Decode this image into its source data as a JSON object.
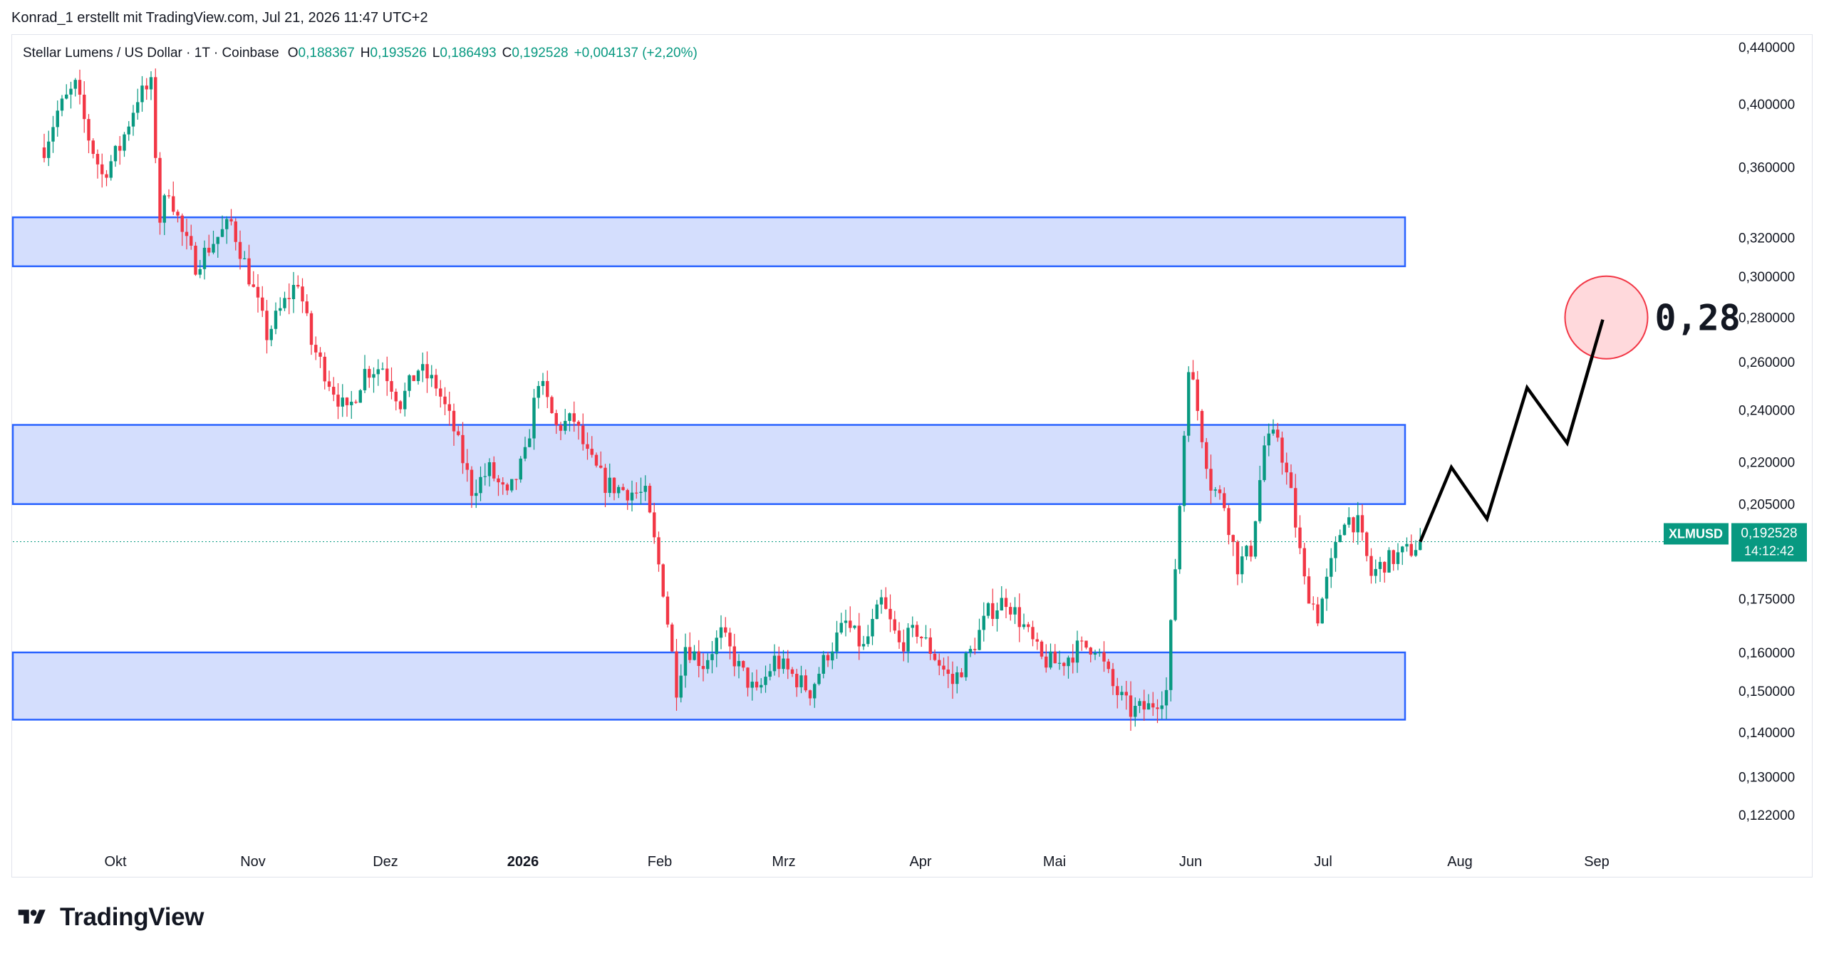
{
  "header": {
    "credit": "Konrad_1 erstellt mit TradingView.com, Jul 21, 2026 11:47 UTC+2"
  },
  "legend": {
    "symbol": "Stellar Lumens / US Dollar · 1T · Coinbase",
    "open_label": "O",
    "open": "0,188367",
    "high_label": "H",
    "high": "0,193526",
    "low_label": "L",
    "low": "0,186493",
    "close_label": "C",
    "close": "0,192528",
    "change": "+0,004137 (+2,20%)"
  },
  "price_tag": {
    "symbol": "XLMUSD",
    "price": "0,192528",
    "countdown": "14:12:42"
  },
  "annotation": {
    "target_text": "0,28"
  },
  "brand": {
    "name": "TradingView"
  },
  "colors": {
    "up": "#089981",
    "down": "#f23645",
    "zone_fill": "#d4defd",
    "zone_stroke": "#2962ff",
    "target_circle_fill": "#ffd9dc",
    "target_circle_stroke": "#f23645",
    "projection": "#000000",
    "grid_text": "#131722"
  },
  "chart_data": {
    "type": "candlestick",
    "symbol": "XLMUSD",
    "timeframe": "1T",
    "exchange": "Coinbase",
    "y_scale": "log",
    "y_ticks": [
      "0,440000",
      "0,400000",
      "0,360000",
      "0,320000",
      "0,300000",
      "0,280000",
      "0,260000",
      "0,240000",
      "0,220000",
      "0,205000",
      "0,175000",
      "0,160000",
      "0,150000",
      "0,140000",
      "0,130000",
      "0,122000"
    ],
    "y_tick_values": [
      0.44,
      0.4,
      0.36,
      0.32,
      0.3,
      0.28,
      0.26,
      0.24,
      0.22,
      0.205,
      0.175,
      0.16,
      0.15,
      0.14,
      0.13,
      0.122
    ],
    "x_ticks": [
      "Okt",
      "Nov",
      "Dez",
      "2026",
      "Feb",
      "Mrz",
      "Apr",
      "Mai",
      "Jun",
      "Jul",
      "Aug",
      "Sep"
    ],
    "x_tick_bold": [
      false,
      false,
      false,
      true,
      false,
      false,
      false,
      false,
      false,
      false,
      false,
      false
    ],
    "zones": [
      {
        "low": 0.305,
        "high": 0.331
      },
      {
        "low": 0.205,
        "high": 0.234
      },
      {
        "low": 0.143,
        "high": 0.16
      }
    ],
    "last_price": 0.192528,
    "price_path": [
      [
        "2025-09-15",
        0.372
      ],
      [
        "2025-09-18",
        0.395
      ],
      [
        "2025-09-22",
        0.412
      ],
      [
        "2025-09-25",
        0.378
      ],
      [
        "2025-09-28",
        0.355
      ],
      [
        "2025-10-02",
        0.372
      ],
      [
        "2025-10-06",
        0.405
      ],
      [
        "2025-10-09",
        0.412
      ],
      [
        "2025-10-11",
        0.33
      ],
      [
        "2025-10-13",
        0.348
      ],
      [
        "2025-10-16",
        0.322
      ],
      [
        "2025-10-19",
        0.306
      ],
      [
        "2025-10-23",
        0.318
      ],
      [
        "2025-10-27",
        0.328
      ],
      [
        "2025-10-31",
        0.3
      ],
      [
        "2025-11-04",
        0.272
      ],
      [
        "2025-11-08",
        0.287
      ],
      [
        "2025-11-11",
        0.298
      ],
      [
        "2025-11-14",
        0.268
      ],
      [
        "2025-11-18",
        0.252
      ],
      [
        "2025-11-22",
        0.238
      ],
      [
        "2025-11-26",
        0.256
      ],
      [
        "2025-11-30",
        0.258
      ],
      [
        "2025-12-04",
        0.243
      ],
      [
        "2025-12-08",
        0.257
      ],
      [
        "2025-12-12",
        0.25
      ],
      [
        "2025-12-16",
        0.232
      ],
      [
        "2025-12-20",
        0.21
      ],
      [
        "2025-12-24",
        0.217
      ],
      [
        "2025-12-28",
        0.207
      ],
      [
        "2026-01-01",
        0.222
      ],
      [
        "2026-01-04",
        0.253
      ],
      [
        "2026-01-08",
        0.233
      ],
      [
        "2026-01-12",
        0.236
      ],
      [
        "2026-01-15",
        0.222
      ],
      [
        "2026-01-19",
        0.212
      ],
      [
        "2026-01-23",
        0.21
      ],
      [
        "2026-01-28",
        0.208
      ],
      [
        "2026-02-01",
        0.178
      ],
      [
        "2026-02-04",
        0.151
      ],
      [
        "2026-02-06",
        0.162
      ],
      [
        "2026-02-10",
        0.157
      ],
      [
        "2026-02-14",
        0.165
      ],
      [
        "2026-02-18",
        0.156
      ],
      [
        "2026-02-22",
        0.149
      ],
      [
        "2026-02-26",
        0.158
      ],
      [
        "2026-03-02",
        0.154
      ],
      [
        "2026-03-06",
        0.15
      ],
      [
        "2026-03-10",
        0.16
      ],
      [
        "2026-03-14",
        0.168
      ],
      [
        "2026-03-18",
        0.161
      ],
      [
        "2026-03-22",
        0.174
      ],
      [
        "2026-03-26",
        0.162
      ],
      [
        "2026-03-30",
        0.166
      ],
      [
        "2026-04-03",
        0.159
      ],
      [
        "2026-04-07",
        0.152
      ],
      [
        "2026-04-11",
        0.16
      ],
      [
        "2026-04-15",
        0.171
      ],
      [
        "2026-04-19",
        0.175
      ],
      [
        "2026-04-23",
        0.167
      ],
      [
        "2026-04-27",
        0.158
      ],
      [
        "2026-05-01",
        0.157
      ],
      [
        "2026-05-05",
        0.161
      ],
      [
        "2026-05-09",
        0.162
      ],
      [
        "2026-05-13",
        0.151
      ],
      [
        "2026-05-17",
        0.145
      ],
      [
        "2026-05-21",
        0.146
      ],
      [
        "2026-05-25",
        0.15
      ],
      [
        "2026-05-28",
        0.205
      ],
      [
        "2026-05-30",
        0.26
      ],
      [
        "2026-06-01",
        0.24
      ],
      [
        "2026-06-04",
        0.212
      ],
      [
        "2026-06-07",
        0.205
      ],
      [
        "2026-06-10",
        0.185
      ],
      [
        "2026-06-13",
        0.19
      ],
      [
        "2026-06-16",
        0.226
      ],
      [
        "2026-06-19",
        0.23
      ],
      [
        "2026-06-22",
        0.208
      ],
      [
        "2026-06-25",
        0.18
      ],
      [
        "2026-06-28",
        0.17
      ],
      [
        "2026-07-01",
        0.185
      ],
      [
        "2026-07-04",
        0.201
      ],
      [
        "2026-07-07",
        0.198
      ],
      [
        "2026-07-10",
        0.182
      ],
      [
        "2026-07-13",
        0.186
      ],
      [
        "2026-07-16",
        0.188
      ],
      [
        "2026-07-19",
        0.19
      ],
      [
        "2026-07-21",
        0.1925
      ]
    ],
    "projection": [
      [
        "2026-07-21",
        0.1925
      ],
      [
        "2026-07-28",
        0.218
      ],
      [
        "2026-08-05",
        0.2
      ],
      [
        "2026-08-14",
        0.249
      ],
      [
        "2026-08-23",
        0.227
      ],
      [
        "2026-08-31",
        0.279
      ]
    ],
    "target": {
      "date": "2026-08-31",
      "price": 0.28,
      "label": "0,28"
    }
  }
}
